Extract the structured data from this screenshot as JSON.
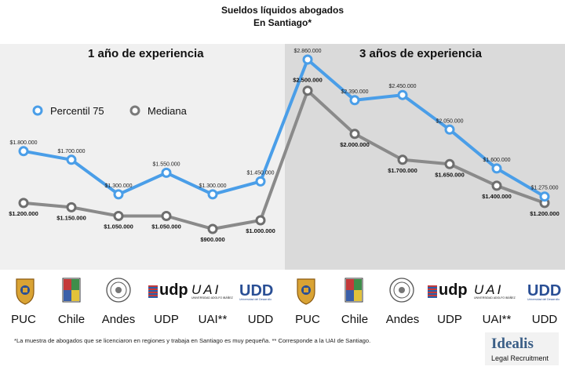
{
  "header": {
    "title": "Sueldos líquidos abogados",
    "subtitle": "En Santiago*"
  },
  "colors": {
    "blue": "#4a9ee8",
    "gray": "#8a8a8a",
    "left_bg": "#f0f0f0",
    "right_bg": "#dadada"
  },
  "chart_data": {
    "type": "line",
    "title": "Sueldos líquidos abogados",
    "subtitle": "En Santiago*",
    "panels": [
      "1 año de experiencia",
      "3 años de experiencia"
    ],
    "categories": [
      "PUC",
      "Chile",
      "Andes",
      "UDP",
      "UAI**",
      "UDD",
      "PUC",
      "Chile",
      "Andes",
      "UDP",
      "UAI**",
      "UDD"
    ],
    "series": [
      {
        "name": "Percentil 75",
        "color": "#4a9ee8",
        "values": [
          1800000,
          1700000,
          1300000,
          1550000,
          1300000,
          1450000,
          2860000,
          2390000,
          2450000,
          2050000,
          1600000,
          1275000
        ],
        "labels": [
          "$1.800.000",
          "$1.700.000",
          "$1.300.000",
          "$1.550.000",
          "$1.300.000",
          "$1.450.000",
          "$2.860.000",
          "$2.390.000",
          "$2.450.000",
          "$2.050.000",
          "$1.600.000",
          "$1.275.000"
        ]
      },
      {
        "name": "Mediana",
        "color": "#8a8a8a",
        "values": [
          1200000,
          1150000,
          1050000,
          1050000,
          900000,
          1000000,
          2500000,
          2000000,
          1700000,
          1650000,
          1400000,
          1200000
        ],
        "labels": [
          "$1.200.000",
          "$1.150.000",
          "$1.050.000",
          "$1.050.000",
          "$900.000",
          "$1.000.000",
          "$2.500.000",
          "$2.000.000",
          "$1.700.000",
          "$1.650.000",
          "$1.400.000",
          "$1.200.000"
        ]
      }
    ],
    "ylim": [
      900000,
      2860000
    ],
    "grid": false,
    "legend": "top-left"
  },
  "legend": {
    "p75": "Percentil 75",
    "median": "Mediana"
  },
  "universities": [
    "PUC",
    "Chile",
    "Andes",
    "UDP",
    "UAI**",
    "UDD",
    "PUC",
    "Chile",
    "Andes",
    "UDP",
    "UAI**",
    "UDD"
  ],
  "logos": {
    "udp": "udp",
    "uai": "UAI",
    "uai_sub": "UNIVERSIDAD ADOLFO IBÁÑEZ",
    "udd": "UDD",
    "udd_sub": "Universidad del Desarrollo"
  },
  "footnote": "*La muestra de abogados que se licenciaron en regiones y trabaja en Santiago es muy pequeña.   ** Corresponde a la UAI de Santiago.",
  "brand": {
    "name": "Idealis",
    "tagline": "Legal Recruitment"
  }
}
